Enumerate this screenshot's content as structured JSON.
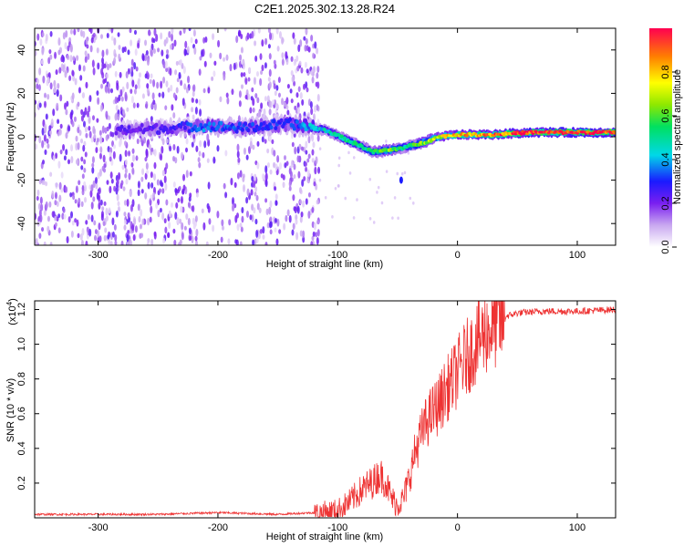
{
  "title": "C2E1.2025.302.13.28.R24",
  "chart_data": [
    {
      "type": "heatmap",
      "name": "spectrogram",
      "xlabel": "Height of straight line (km)",
      "ylabel": "Frequency (Hz)",
      "xlim": [
        -353,
        132
      ],
      "ylim": [
        -50,
        50
      ],
      "xticks": [
        -300,
        -200,
        -100,
        0,
        100
      ],
      "xtick_labels": [
        "-300",
        "-200",
        "-100",
        "0",
        "100"
      ],
      "yticks": [
        -40,
        -20,
        0,
        20,
        40
      ],
      "ytick_labels": [
        "-40",
        "-20",
        "0",
        "20",
        "40"
      ],
      "colorbar": {
        "label": "Normalized spectral amplitude",
        "range": [
          0,
          1
        ],
        "ticks": [
          0.0,
          0.2,
          0.4,
          0.6,
          0.8
        ],
        "tick_labels": [
          "0.0",
          "0.2",
          "0.4",
          "0.6",
          "0.8"
        ]
      },
      "noise_region_x": [
        -353,
        -115
      ],
      "signal_track": {
        "x": [
          -280,
          -240,
          -210,
          -180,
          -140,
          -110,
          -90,
          -70,
          -55,
          -45,
          -30,
          -15,
          0,
          30,
          60,
          100,
          132
        ],
        "freq": [
          3,
          4,
          5,
          4,
          6,
          3,
          -2,
          -7,
          -6,
          -5,
          -3,
          0,
          1,
          1,
          2,
          2,
          2
        ],
        "amplitude": [
          0.22,
          0.24,
          0.35,
          0.3,
          0.3,
          0.45,
          0.5,
          0.55,
          0.62,
          0.5,
          0.62,
          0.72,
          0.8,
          0.88,
          0.95,
          0.97,
          0.95
        ]
      },
      "isolated_feature": {
        "x": -47,
        "freq": -20
      }
    },
    {
      "type": "line",
      "name": "snr",
      "xlabel": "Height of straight line (km)",
      "ylabel": "SNR (10 * v/v)",
      "scale_label": "(x10",
      "scale_exponent": "4",
      "scale_suffix": ")",
      "color": "#ee3333",
      "xlim": [
        -353,
        132
      ],
      "ylim": [
        0,
        1.25
      ],
      "xticks": [
        -300,
        -200,
        -100,
        0,
        100
      ],
      "xtick_labels": [
        "-300",
        "-200",
        "-100",
        "0",
        "100"
      ],
      "yticks": [
        0.2,
        0.4,
        0.6,
        0.8,
        1.0,
        1.2
      ],
      "ytick_labels": [
        "0.2",
        "0.4",
        "0.6",
        "0.8",
        "1.0",
        "1.2"
      ],
      "envelope": {
        "x": [
          -353,
          -250,
          -200,
          -150,
          -120,
          -100,
          -90,
          -80,
          -70,
          -65,
          -60,
          -55,
          -50,
          -45,
          -40,
          -35,
          -30,
          -25,
          -20,
          -15,
          -10,
          -5,
          0,
          5,
          10,
          15,
          20,
          30,
          40,
          50,
          70,
          100,
          132
        ],
        "y": [
          0.02,
          0.02,
          0.03,
          0.02,
          0.03,
          0.05,
          0.1,
          0.17,
          0.22,
          0.26,
          0.22,
          0.12,
          0.08,
          0.12,
          0.25,
          0.4,
          0.5,
          0.58,
          0.63,
          0.68,
          0.75,
          0.8,
          0.86,
          0.92,
          0.97,
          1.02,
          1.07,
          1.13,
          1.16,
          1.18,
          1.19,
          1.19,
          1.2
        ]
      }
    }
  ]
}
